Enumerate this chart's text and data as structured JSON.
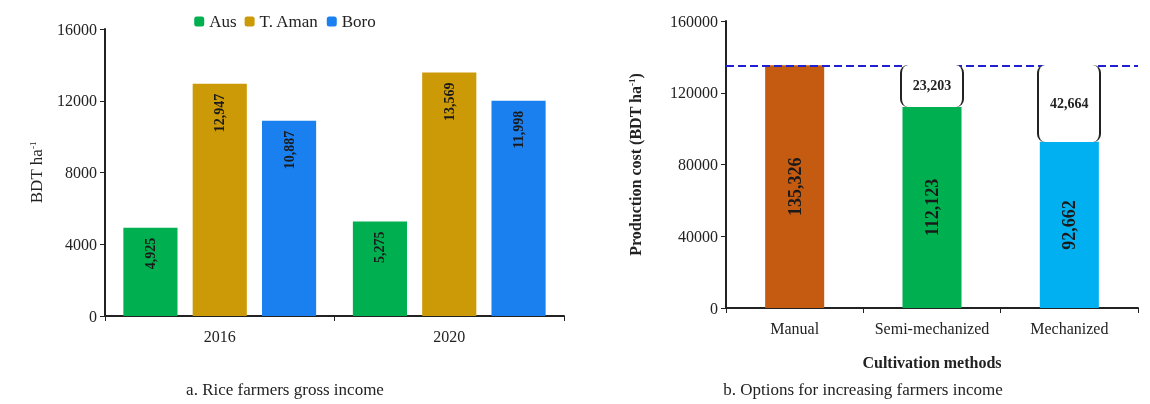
{
  "chart_data": [
    {
      "type": "bar",
      "categories": [
        "2016",
        "2020"
      ],
      "ylabel": "BDT ha$^{-1}$",
      "ylim": [
        0,
        16000
      ],
      "yticks": [
        0,
        4000,
        8000,
        12000,
        16000
      ],
      "legend": "top",
      "grid": false,
      "series": [
        {
          "name": "Aus",
          "color": "#00b050",
          "values": [
            4925,
            5275
          ],
          "value_labels": [
            "4,925",
            "5,275"
          ]
        },
        {
          "name": "T. Aman",
          "color": "#cc9a06",
          "values": [
            12947,
            13569
          ],
          "value_labels": [
            "12,947",
            "13,569"
          ]
        },
        {
          "name": "Boro",
          "color": "#1a80f0",
          "values": [
            10887,
            11998
          ],
          "value_labels": [
            "10,887",
            "11,998"
          ]
        }
      ],
      "annotations": [
        "a. Rice farmers gross income"
      ]
    },
    {
      "type": "bar",
      "categories": [
        "Manual",
        "Semi-mechanized",
        "Mechanized"
      ],
      "xlabel": "Cultivation methods",
      "ylabel": "Production cost (BDT ha$^{-1}$)",
      "ylim": [
        0,
        160000
      ],
      "yticks": [
        0,
        40000,
        80000,
        120000,
        160000
      ],
      "grid": false,
      "values": [
        135326,
        112123,
        92662
      ],
      "colors": [
        "#c55a11",
        "#00b050",
        "#00b0f0"
      ],
      "value_labels": [
        "135,326",
        "112,123",
        "92,662"
      ],
      "ref_lines": [
        {
          "axis": "y",
          "value": 135326,
          "color": "#2020d0",
          "line_style": "dashed"
        }
      ],
      "annotations": [
        "23,203",
        "42,664",
        "b. Options for increasing farmers income"
      ]
    }
  ]
}
